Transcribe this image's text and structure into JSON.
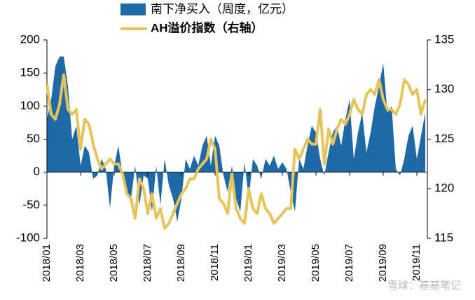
{
  "chart_data": {
    "type": "area-line",
    "categories": [
      "2018/01",
      null,
      null,
      null,
      null,
      null,
      null,
      null,
      "2018/03",
      null,
      null,
      null,
      null,
      null,
      null,
      null,
      "2018/05",
      null,
      null,
      null,
      null,
      null,
      null,
      null,
      "2018/07",
      null,
      null,
      null,
      null,
      null,
      null,
      null,
      "2018/09",
      null,
      null,
      null,
      null,
      null,
      null,
      null,
      "2018/11",
      null,
      null,
      null,
      null,
      null,
      null,
      null,
      "2019/01",
      null,
      null,
      null,
      null,
      null,
      null,
      null,
      "2019/03",
      null,
      null,
      null,
      null,
      null,
      null,
      null,
      "2019/05",
      null,
      null,
      null,
      null,
      null,
      null,
      null,
      "2019/07",
      null,
      null,
      null,
      null,
      null,
      null,
      null,
      "2019/09",
      null,
      null,
      null,
      null,
      null,
      null,
      null,
      "2019/11",
      null,
      null
    ],
    "series": [
      {
        "name": "南下净买入（周度，亿元）",
        "color": "#1f69a6",
        "values": [
          80,
          110,
          160,
          175,
          175,
          130,
          50,
          70,
          10,
          40,
          30,
          -10,
          -5,
          20,
          5,
          -55,
          10,
          40,
          -5,
          -30,
          -40,
          10,
          -50,
          -5,
          -10,
          -60,
          10,
          -50,
          20,
          -20,
          -40,
          -75,
          -40,
          20,
          5,
          25,
          10,
          40,
          55,
          10,
          55,
          40,
          -5,
          -30,
          10,
          -40,
          -60,
          15,
          -40,
          20,
          10,
          -10,
          20,
          10,
          25,
          5,
          15,
          5,
          -30,
          -60,
          20,
          5,
          40,
          70,
          60,
          20,
          -5,
          30,
          60,
          70,
          40,
          80,
          110,
          20,
          60,
          90,
          30,
          60,
          100,
          130,
          165,
          90,
          100,
          5,
          -5,
          20,
          55,
          70,
          20,
          55,
          90
        ]
      },
      {
        "name": "AH溢价指数（右轴）",
        "color": "#e5c45a",
        "axis": "y2",
        "values": [
          130.5,
          127.5,
          127,
          128.5,
          131.5,
          128,
          127.5,
          128,
          124,
          127,
          126.5,
          124.5,
          123,
          122,
          122.5,
          123,
          122.5,
          122.5,
          121.5,
          119.5,
          119,
          117,
          121,
          120,
          117.5,
          119.5,
          117,
          118,
          116,
          116.5,
          117.5,
          118.5,
          119.5,
          120,
          121,
          121,
          122,
          122.5,
          123,
          125,
          124,
          119,
          118.5,
          117.5,
          121.5,
          118,
          117,
          116.5,
          120,
          118,
          117.5,
          119.5,
          118,
          117.5,
          116.5,
          117,
          117.5,
          118,
          118,
          124,
          123,
          124,
          125,
          124.5,
          124.5,
          128,
          122.5,
          126,
          124.5,
          126,
          127,
          126.5,
          127.5,
          129,
          128,
          127.5,
          129.5,
          130,
          129.5,
          131,
          129,
          128,
          128,
          127.5,
          128.5,
          131,
          130.5,
          129.5,
          130,
          127.5,
          129
        ]
      }
    ],
    "ylim": [
      -100,
      200
    ],
    "yticks": [
      -100,
      -50,
      0,
      50,
      100,
      150,
      200
    ],
    "y2lim": [
      115,
      135
    ],
    "y2ticks": [
      115,
      120,
      125,
      130,
      135
    ],
    "watermark": "雪球：基基笔记"
  }
}
